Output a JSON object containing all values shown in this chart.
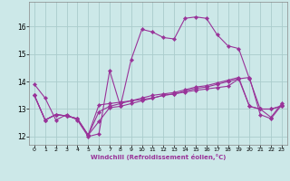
{
  "xlabel": "Windchill (Refroidissement éolien,°C)",
  "bg_color": "#cce8e8",
  "grid_color": "#aacccc",
  "line_color": "#993399",
  "x_ticks": [
    0,
    1,
    2,
    3,
    4,
    5,
    6,
    7,
    8,
    9,
    10,
    11,
    12,
    13,
    14,
    15,
    16,
    17,
    18,
    19,
    20,
    21,
    22,
    23
  ],
  "ylim": [
    11.7,
    16.9
  ],
  "xlim": [
    -0.5,
    23.5
  ],
  "series": [
    [
      13.9,
      13.4,
      12.6,
      12.8,
      12.6,
      12.0,
      12.1,
      14.4,
      13.1,
      14.8,
      15.9,
      15.8,
      15.6,
      15.55,
      16.3,
      16.35,
      16.3,
      15.7,
      15.3,
      15.2,
      14.1,
      13.0,
      12.7,
      13.2
    ],
    [
      13.5,
      12.6,
      12.8,
      12.75,
      12.65,
      12.05,
      12.55,
      13.05,
      13.1,
      13.2,
      13.3,
      13.4,
      13.5,
      13.55,
      13.65,
      13.75,
      13.8,
      13.9,
      14.0,
      14.1,
      14.15,
      12.8,
      12.65,
      13.15
    ],
    [
      13.5,
      12.6,
      12.8,
      12.75,
      12.65,
      12.05,
      12.9,
      13.1,
      13.2,
      13.3,
      13.4,
      13.5,
      13.55,
      13.6,
      13.7,
      13.8,
      13.85,
      13.95,
      14.05,
      14.15,
      13.1,
      13.0,
      13.0,
      13.1
    ],
    [
      13.5,
      12.6,
      12.8,
      12.75,
      12.65,
      12.05,
      13.15,
      13.2,
      13.25,
      13.3,
      13.35,
      13.4,
      13.5,
      13.55,
      13.62,
      13.68,
      13.73,
      13.78,
      13.83,
      14.1,
      13.1,
      13.0,
      13.0,
      13.12
    ]
  ]
}
